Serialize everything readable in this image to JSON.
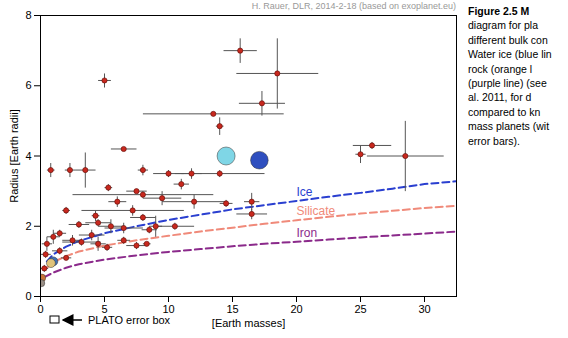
{
  "chart_data": {
    "type": "scatter",
    "title": "H. Rauer, DLR, 2014-2-18 (based on exoplanet.eu)",
    "x_label": "[Earth masses]",
    "y_label": "Radius [Earth radii]",
    "xlim": [
      0,
      32.5
    ],
    "ylim": [
      0,
      8
    ],
    "xticks": [
      0,
      5,
      10,
      15,
      20,
      25,
      30
    ],
    "yticks": [
      0,
      2,
      4,
      6,
      8
    ],
    "grid": false,
    "color": "#c8281e",
    "marker": "circle",
    "x": [
      5.0,
      15.6,
      18.5,
      17.3,
      13.5,
      14.0,
      6.5,
      25.9,
      25.0,
      28.5,
      0.8,
      2.3,
      3.5,
      5.3,
      8.0,
      10.0,
      11.8,
      11.0,
      14.0,
      16.5,
      16.5,
      8.0,
      7.5,
      9.5,
      6.0,
      8.0,
      7.2,
      2.0,
      4.3,
      10.5,
      3.0,
      4.5,
      5.5,
      6.5,
      8.5,
      4.0,
      1.5,
      2.5,
      3.2,
      4.5,
      6.5,
      0.5,
      1.0,
      0.4,
      1.5,
      2.0,
      0.3,
      7.5,
      5.2,
      8.3,
      14.5,
      12.0,
      9.0
    ],
    "y": [
      6.15,
      7.0,
      6.35,
      5.5,
      5.2,
      4.85,
      4.2,
      4.3,
      4.05,
      4.0,
      3.6,
      3.6,
      3.6,
      3.1,
      3.6,
      3.5,
      3.5,
      3.2,
      3.5,
      2.7,
      2.35,
      2.9,
      3.0,
      2.8,
      2.7,
      2.25,
      2.45,
      2.45,
      2.3,
      2.0,
      2.05,
      2.1,
      2.0,
      1.95,
      1.9,
      1.75,
      1.8,
      1.6,
      1.55,
      1.5,
      1.6,
      1.5,
      1.7,
      1.2,
      1.3,
      1.1,
      0.8,
      1.45,
      1.4,
      1.5,
      2.65,
      2.7,
      2.0
    ],
    "x_error": [
      0.5,
      1.3,
      3.2,
      1.8,
      5.5,
      0.3,
      1.0,
      1.5,
      0.4,
      3.0,
      0.3,
      0.4,
      0.8,
      0.3,
      0.4,
      1.2,
      0.8,
      0.6,
      3.5,
      0.6,
      1.2,
      5.5,
      0.8,
      1.5,
      0.7,
      1.0,
      4.0,
      0.3,
      0.3,
      1.5,
      0.8,
      1.0,
      1.0,
      1.5,
      0.6,
      1.0,
      0.5,
      0.8,
      1.5,
      0.6,
      0.5,
      0.4,
      0.5,
      0.4,
      0.6,
      0.4,
      0.3,
      0.8,
      0.4,
      0.3,
      0.5,
      2.5,
      0.5
    ],
    "y_error": [
      0.2,
      0.35,
      1.0,
      0.35,
      0.05,
      0.25,
      0.05,
      0.1,
      0.25,
      1.0,
      0.2,
      0.2,
      0.5,
      0.1,
      0.15,
      0.1,
      0.15,
      0.15,
      0.1,
      0.25,
      0.15,
      0.1,
      0.05,
      0.2,
      0.15,
      0.1,
      0.15,
      0.1,
      0.15,
      0.1,
      0.1,
      0.1,
      0.2,
      0.15,
      0.1,
      0.15,
      0.1,
      0.15,
      0.1,
      0.2,
      0.1,
      0.2,
      0.2,
      0.1,
      0.1,
      0.05,
      0.1,
      0.1,
      0.1,
      0.05,
      0.1,
      0.2,
      0.3
    ],
    "solar_system": {
      "x": [
        0.055,
        0.107,
        0.815,
        1.0,
        14.5,
        17.1
      ],
      "y": [
        0.38,
        0.53,
        0.95,
        1.0,
        4.0,
        3.88
      ],
      "colors": [
        "#9a8f86",
        "#c8743a",
        "#e0c37a",
        "#3f6fb5",
        "#7fd6e6",
        "#2f4fbf"
      ]
    },
    "series": [
      {
        "name": "Ice",
        "color": "#2a3fd0",
        "type": "line",
        "line_style": "dashed",
        "x": [
          0.5,
          1,
          2,
          3,
          5,
          7.5,
          10,
          12.5,
          15,
          17.5,
          20,
          22.5,
          25,
          27.5,
          30,
          32.5
        ],
        "values": [
          1.0,
          1.2,
          1.42,
          1.58,
          1.8,
          2.0,
          2.18,
          2.33,
          2.48,
          2.6,
          2.72,
          2.84,
          2.95,
          3.07,
          3.2,
          3.28
        ]
      },
      {
        "name": "Silicate",
        "color": "#f08a7a",
        "type": "line",
        "line_style": "dashed",
        "x": [
          0.5,
          1,
          2,
          3,
          5,
          7.5,
          10,
          12.5,
          15,
          17.5,
          20,
          22.5,
          25,
          27.5,
          30,
          32.5
        ],
        "values": [
          0.82,
          0.98,
          1.15,
          1.28,
          1.45,
          1.6,
          1.73,
          1.85,
          1.96,
          2.07,
          2.17,
          2.27,
          2.36,
          2.44,
          2.52,
          2.58
        ]
      },
      {
        "name": "Iron",
        "color": "#8b2a8b",
        "type": "line",
        "line_style": "dashed",
        "x": [
          0.3,
          1,
          2,
          3,
          5,
          7.5,
          10,
          12.5,
          15,
          17.5,
          20,
          22.5,
          25,
          27.5,
          30,
          32.5
        ],
        "values": [
          0.55,
          0.68,
          0.82,
          0.92,
          1.05,
          1.17,
          1.27,
          1.35,
          1.43,
          1.5,
          1.56,
          1.62,
          1.68,
          1.74,
          1.79,
          1.85
        ]
      }
    ],
    "annotations": [
      "PLATO error box"
    ],
    "caption": [
      "Figure 2.5 M",
      "diagram for pla",
      "different bulk con",
      "Water ice (blue lin",
      "rock (orange l",
      "(purple line) (see",
      "al. 2011, for d",
      "compared to kn",
      "mass planets (wit",
      "error bars)."
    ]
  }
}
